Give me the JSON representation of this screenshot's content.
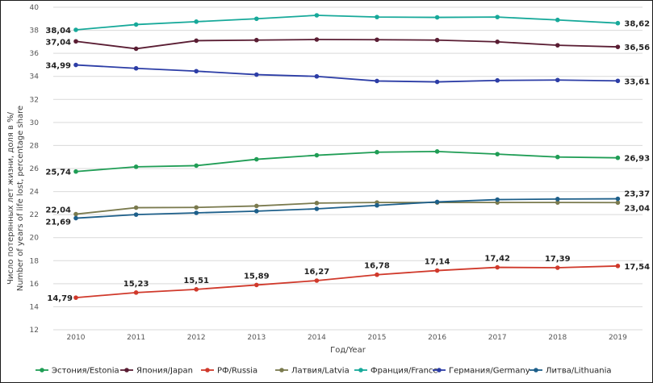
{
  "chart_data": {
    "type": "line",
    "xlabel": "Год/Year",
    "ylabel": [
      "Число потерянных лет жизни, доля в %/",
      "Number of years of life lost, percentage share"
    ],
    "ylim": [
      12,
      40
    ],
    "yticks": [
      12,
      14,
      16,
      18,
      20,
      22,
      24,
      26,
      28,
      30,
      32,
      34,
      36,
      38,
      40
    ],
    "categories": [
      2010,
      2011,
      2012,
      2013,
      2014,
      2015,
      2016,
      2017,
      2018,
      2019
    ],
    "grid": true,
    "legend": "bottom",
    "series": [
      {
        "name": "Эстония/Estonia",
        "color": "#1f9d55",
        "values": [
          25.74,
          26.15,
          26.25,
          26.8,
          27.15,
          27.42,
          27.48,
          27.25,
          27.0,
          26.93
        ],
        "labels": [
          {
            "i": 0,
            "text": "25,74"
          },
          {
            "i": 9,
            "text": "26,93"
          }
        ]
      },
      {
        "name": "Япония/Japan",
        "color": "#5a1d33",
        "values": [
          37.04,
          36.4,
          37.1,
          37.15,
          37.2,
          37.18,
          37.15,
          37.0,
          36.7,
          36.56
        ],
        "labels": [
          {
            "i": 0,
            "text": "37,04"
          },
          {
            "i": 9,
            "text": "36,56"
          }
        ]
      },
      {
        "name": "РФ/Russia",
        "color": "#d0392b",
        "values": [
          14.79,
          15.23,
          15.51,
          15.89,
          16.27,
          16.78,
          17.14,
          17.42,
          17.39,
          17.54
        ],
        "labels": [
          {
            "i": 0,
            "text": "14,79"
          },
          {
            "i": 1,
            "text": "15,23"
          },
          {
            "i": 2,
            "text": "15,51"
          },
          {
            "i": 3,
            "text": "15,89"
          },
          {
            "i": 4,
            "text": "16,27"
          },
          {
            "i": 5,
            "text": "16,78"
          },
          {
            "i": 6,
            "text": "17,14"
          },
          {
            "i": 7,
            "text": "17,42"
          },
          {
            "i": 8,
            "text": "17,39"
          },
          {
            "i": 9,
            "text": "17,54"
          }
        ]
      },
      {
        "name": "Латвия/Latvia",
        "color": "#7a7a4e",
        "values": [
          22.04,
          22.6,
          22.62,
          22.75,
          23.0,
          23.05,
          23.05,
          23.05,
          23.05,
          23.04
        ],
        "labels": [
          {
            "i": 0,
            "text": "22,04"
          },
          {
            "i": 9,
            "text": "23,04"
          }
        ]
      },
      {
        "name": "Франция/France",
        "color": "#17a99a",
        "values": [
          38.04,
          38.5,
          38.75,
          39.0,
          39.3,
          39.15,
          39.12,
          39.15,
          38.9,
          38.62
        ],
        "labels": [
          {
            "i": 0,
            "text": "38,04"
          },
          {
            "i": 9,
            "text": "38,62"
          }
        ]
      },
      {
        "name": "Германия/Germany",
        "color": "#2c3da6",
        "values": [
          34.99,
          34.7,
          34.45,
          34.15,
          34.0,
          33.6,
          33.52,
          33.65,
          33.68,
          33.61
        ],
        "labels": [
          {
            "i": 0,
            "text": "34,99"
          },
          {
            "i": 9,
            "text": "33,61"
          }
        ]
      },
      {
        "name": "Литва/Lithuania",
        "color": "#1d5f8a",
        "values": [
          21.69,
          22.0,
          22.15,
          22.3,
          22.5,
          22.8,
          23.1,
          23.3,
          23.35,
          23.37
        ],
        "labels": [
          {
            "i": 0,
            "text": "21,69"
          },
          {
            "i": 9,
            "text": "23,37"
          }
        ]
      }
    ]
  }
}
